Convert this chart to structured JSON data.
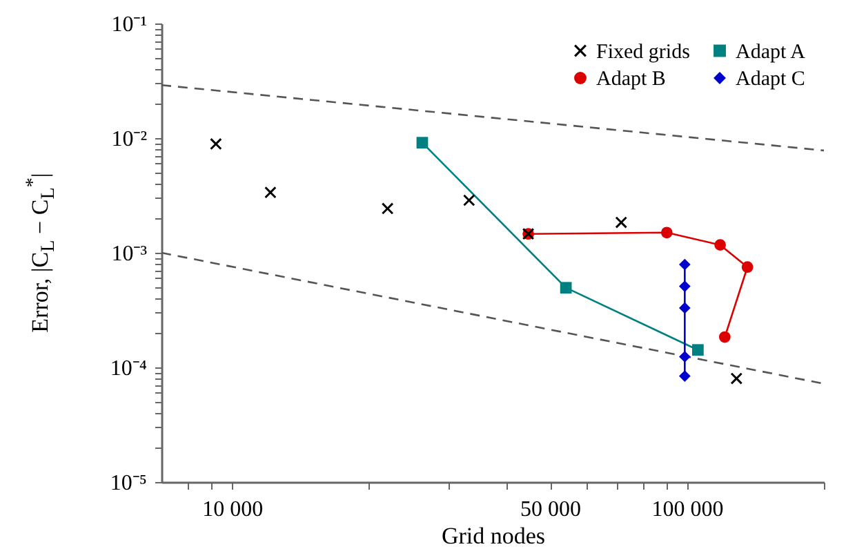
{
  "chart_data": {
    "type": "line",
    "xlabel": "Grid nodes",
    "ylabel": "Error, |C$_{L}$ − C$_{L}$$^{*}$|",
    "log": "xy",
    "grid": false,
    "legend": "top right",
    "xlim": [
      7000,
      200000
    ],
    "xticks": [
      {
        "value": 8000,
        "label": null
      },
      {
        "value": 9000,
        "label": null
      },
      {
        "value": 10000,
        "label": "10 000"
      },
      {
        "value": 20000,
        "label": null
      },
      {
        "value": 30000,
        "label": null
      },
      {
        "value": 40000,
        "label": null
      },
      {
        "value": 50000,
        "label": "50 000"
      },
      {
        "value": 60000,
        "label": null
      },
      {
        "value": 70000,
        "label": null
      },
      {
        "value": 80000,
        "label": null
      },
      {
        "value": 90000,
        "label": null
      },
      {
        "value": 100000,
        "label": "100 000"
      },
      {
        "value": 200000,
        "label": null
      }
    ],
    "ylim": [
      1e-05,
      0.1
    ],
    "yticks": [
      {
        "value": 1e-05,
        "label": "10⁻⁵"
      },
      {
        "value": 2e-05,
        "label": null
      },
      {
        "value": 3e-05,
        "label": null
      },
      {
        "value": 4e-05,
        "label": null
      },
      {
        "value": 5e-05,
        "label": null
      },
      {
        "value": 6e-05,
        "label": null
      },
      {
        "value": 7e-05,
        "label": null
      },
      {
        "value": 8e-05,
        "label": null
      },
      {
        "value": 9e-05,
        "label": null
      },
      {
        "value": 0.0001,
        "label": "10⁻⁴"
      },
      {
        "value": 0.0002,
        "label": null
      },
      {
        "value": 0.0003,
        "label": null
      },
      {
        "value": 0.0004,
        "label": null
      },
      {
        "value": 0.0005,
        "label": null
      },
      {
        "value": 0.0006,
        "label": null
      },
      {
        "value": 0.0007,
        "label": null
      },
      {
        "value": 0.0008,
        "label": null
      },
      {
        "value": 0.0009,
        "label": null
      },
      {
        "value": 0.001,
        "label": "10⁻³"
      },
      {
        "value": 0.002,
        "label": null
      },
      {
        "value": 0.003,
        "label": null
      },
      {
        "value": 0.004,
        "label": null
      },
      {
        "value": 0.005,
        "label": null
      },
      {
        "value": 0.006,
        "label": null
      },
      {
        "value": 0.007,
        "label": null
      },
      {
        "value": 0.008,
        "label": null
      },
      {
        "value": 0.009,
        "label": null
      },
      {
        "value": 0.01,
        "label": "10⁻²"
      },
      {
        "value": 0.02,
        "label": null
      },
      {
        "value": 0.03,
        "label": null
      },
      {
        "value": 0.04,
        "label": null
      },
      {
        "value": 0.05,
        "label": null
      },
      {
        "value": 0.06,
        "label": null
      },
      {
        "value": 0.07,
        "label": null
      },
      {
        "value": 0.08,
        "label": null
      },
      {
        "value": 0.09,
        "label": null
      },
      {
        "value": 0.1,
        "label": "10⁻¹"
      }
    ],
    "series": [
      {
        "type": "line",
        "color": "#555555",
        "line_style": "dashed",
        "marker": "none",
        "x": [
          7000,
          200000
        ],
        "values": [
          0.029,
          0.0078
        ]
      },
      {
        "type": "line",
        "color": "#555555",
        "line_style": "dashed",
        "marker": "none",
        "x": [
          7000,
          200000
        ],
        "values": [
          0.001,
          7.2e-05
        ]
      },
      {
        "name": "Fixed grids",
        "type": "scatter",
        "color": "#000000",
        "marker": "cross",
        "x": [
          9220,
          12150,
          21980,
          33200,
          44800,
          71700,
          128500
        ],
        "values": [
          0.0089,
          0.00336,
          0.00243,
          0.00287,
          0.00146,
          0.00184,
          8e-05
        ]
      },
      {
        "name": "Adapt A",
        "type": "line",
        "color": "#008080",
        "marker": "square",
        "line_style": "solid",
        "x": [
          26200,
          54200,
          105700
        ],
        "values": [
          0.00912,
          0.000495,
          0.000142
        ]
      },
      {
        "name": "Adapt B",
        "type": "line",
        "color": "#dd0000",
        "marker": "circle",
        "line_style": "solid",
        "x": [
          44800,
          90300,
          118300,
          135800,
          121100
        ],
        "values": [
          0.00146,
          0.0015,
          0.00117,
          0.00075,
          0.000184
        ]
      },
      {
        "name": "Adapt C",
        "type": "line",
        "color": "#0000cc",
        "marker": "diamond",
        "line_style": "solid",
        "x": [
          98900,
          98900,
          98900,
          98900,
          98900
        ],
        "values": [
          0.00079,
          0.00051,
          0.00033,
          0.000124,
          8.4e-05
        ]
      }
    ]
  }
}
